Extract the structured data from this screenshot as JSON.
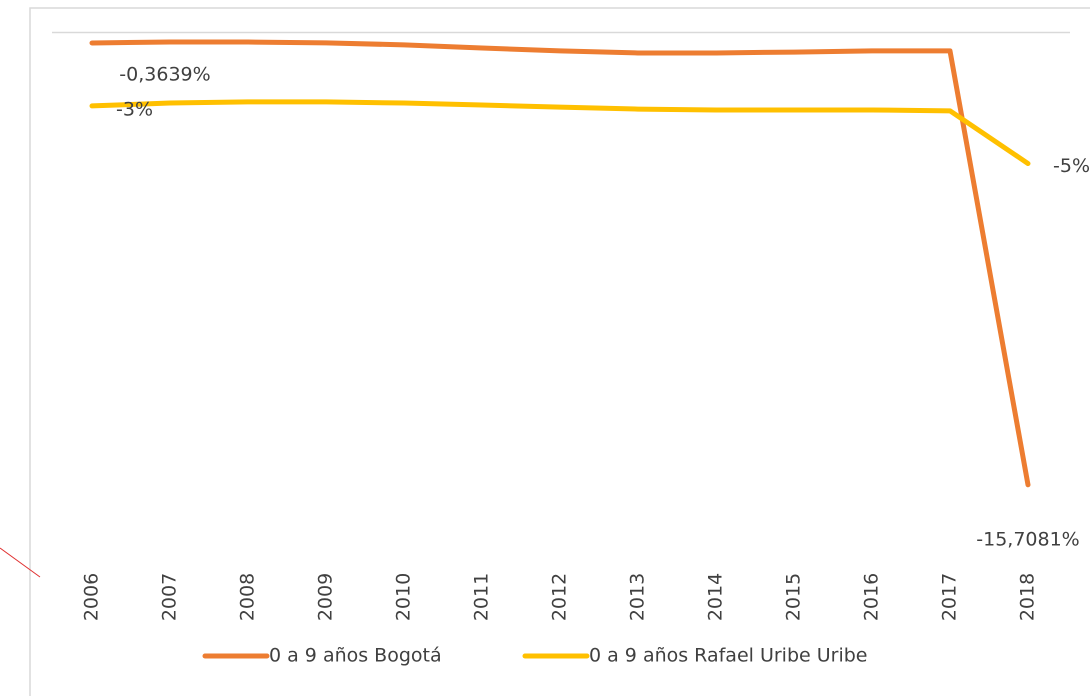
{
  "chart_data": {
    "type": "line",
    "categories": [
      "2006",
      "2007",
      "2008",
      "2009",
      "2010",
      "2011",
      "2012",
      "2013",
      "2014",
      "2015",
      "2016",
      "2017",
      "2018"
    ],
    "series": [
      {
        "name": "0 a 9 años Bogotá",
        "color": "#ed7d31",
        "values": [
          -0.3639,
          -0.33,
          -0.33,
          -0.36,
          -0.43,
          -0.54,
          -0.64,
          -0.71,
          -0.71,
          -0.68,
          -0.64,
          -0.64,
          -15.7081
        ],
        "value_labels": [
          "-0,3639%",
          null,
          null,
          null,
          null,
          null,
          null,
          null,
          null,
          null,
          null,
          null,
          "-15,7081%"
        ]
      },
      {
        "name": "0 a 9 años Rafael Uribe Uribe",
        "color": "#ffc000",
        "values": [
          -2.55,
          -2.45,
          -2.41,
          -2.41,
          -2.45,
          -2.52,
          -2.59,
          -2.66,
          -2.69,
          -2.69,
          -2.69,
          -2.72,
          -4.55
        ],
        "value_labels": [
          "-3%",
          null,
          null,
          null,
          null,
          null,
          null,
          null,
          null,
          null,
          null,
          null,
          "-5%"
        ]
      }
    ],
    "ylim": [
      -17,
      0
    ]
  }
}
